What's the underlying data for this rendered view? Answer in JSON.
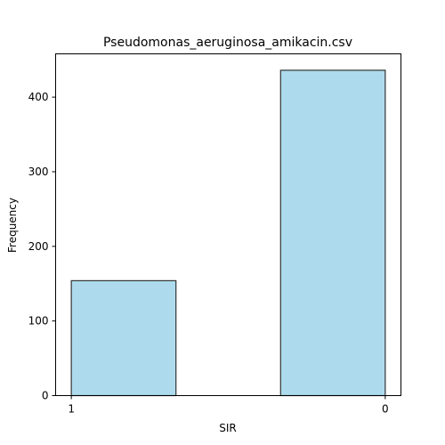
{
  "chart_data": {
    "type": "bar",
    "title": "Pseudomonas_aeruginosa_amikacin.csv",
    "xlabel": "SIR",
    "ylabel": "Frequency",
    "categories": [
      "1",
      "0"
    ],
    "values": [
      154,
      436
    ],
    "xlim": [
      -0.05,
      1.05
    ],
    "ylim": [
      0,
      458
    ],
    "yticks": [
      0,
      100,
      200,
      300,
      400
    ],
    "bar_fill": "#ADDBED",
    "bar_edge": "#333333",
    "grid": false,
    "legend": "none"
  }
}
